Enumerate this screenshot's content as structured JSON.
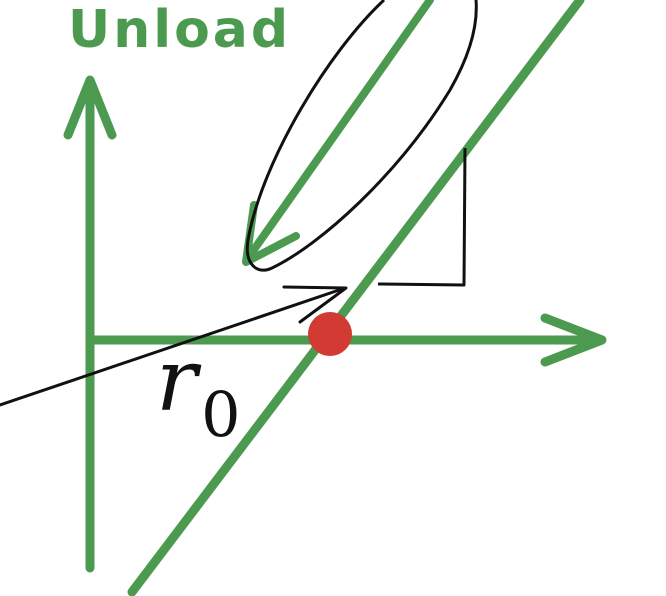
{
  "title": "Unload",
  "point_label": {
    "var": "r",
    "sub": "0"
  },
  "colors": {
    "axis": "#4c9a4f",
    "curve": "#4c9a4f",
    "ink": "#111111",
    "point": "#d23a34",
    "title": "#4c9a4f"
  },
  "icons": {
    "unload-arrow": "arrow-down-left",
    "x-axis-arrow": "arrow-right",
    "y-axis-arrow": "arrow-up",
    "pointer-arrow": "arrow-right"
  }
}
